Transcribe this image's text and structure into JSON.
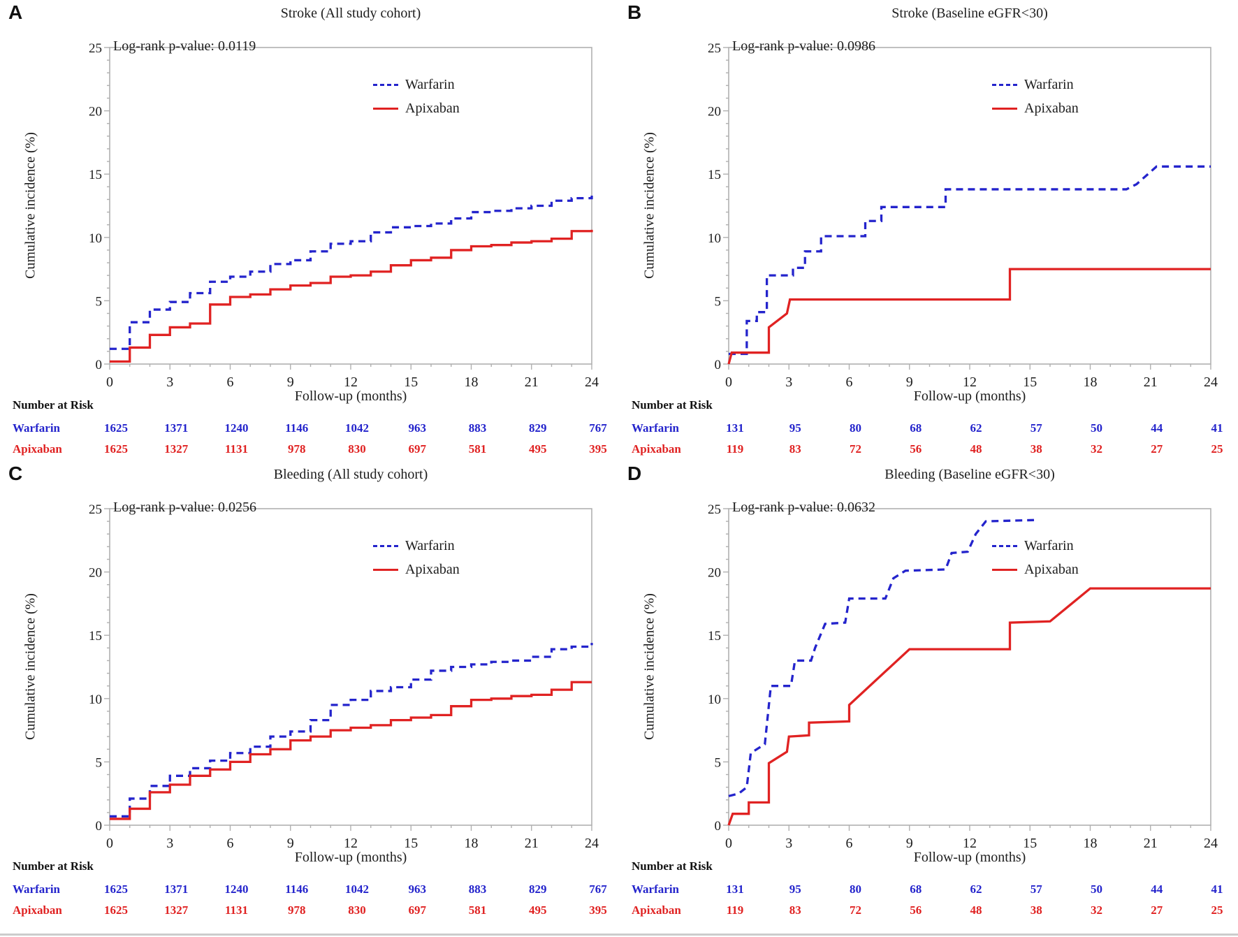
{
  "figure": {
    "background": "#ffffff",
    "axis_color": "#b0b0b0",
    "text_color": "#1d1d1d",
    "ylabel": "Cumulative incidence (%)",
    "xlabel": "Follow-up (months)",
    "risk_header": "Number at Risk",
    "warfarin_color": "#2424cc",
    "apixaban_color": "#e02222"
  },
  "chart_data": [
    {
      "label": "A",
      "title": "Stroke (All study cohort)",
      "type": "line",
      "p_value_label": "Log-rank p-value: 0.0119",
      "xlabel": "Follow-up (months)",
      "ylabel": "Cumulative incidence (%)",
      "xlim": [
        0,
        24
      ],
      "ylim": [
        0,
        25
      ],
      "xticks": [
        0,
        3,
        6,
        9,
        12,
        15,
        18,
        21,
        24
      ],
      "yticks": [
        0,
        5,
        10,
        15,
        20,
        25
      ],
      "grid": false,
      "legend_position": "upper-right-inside",
      "series": [
        {
          "name": "Warfarin",
          "color": "#2424cc",
          "dash": true,
          "step": true,
          "x": [
            0,
            1,
            2,
            3,
            4,
            5,
            6,
            7,
            8,
            9,
            10,
            11,
            12,
            13,
            14,
            15,
            16,
            17,
            18,
            19,
            20,
            21,
            22,
            23,
            24
          ],
          "y": [
            1.2,
            3.3,
            4.3,
            4.9,
            5.6,
            6.5,
            6.9,
            7.3,
            7.9,
            8.2,
            8.9,
            9.5,
            9.7,
            10.4,
            10.8,
            10.9,
            11.1,
            11.5,
            12.0,
            12.1,
            12.3,
            12.5,
            12.9,
            13.1,
            13.3
          ]
        },
        {
          "name": "Apixaban",
          "color": "#e02222",
          "dash": false,
          "step": true,
          "x": [
            0,
            1,
            2,
            3,
            4,
            5,
            6,
            7,
            8,
            9,
            10,
            11,
            12,
            13,
            14,
            15,
            16,
            17,
            18,
            19,
            20,
            21,
            22,
            23,
            24
          ],
          "y": [
            0.2,
            1.3,
            2.3,
            2.9,
            3.2,
            4.7,
            5.3,
            5.5,
            5.9,
            6.2,
            6.4,
            6.9,
            7.0,
            7.3,
            7.8,
            8.2,
            8.4,
            9.0,
            9.3,
            9.4,
            9.6,
            9.7,
            9.9,
            10.5,
            10.6
          ]
        }
      ],
      "risk_table": {
        "months": [
          0,
          3,
          6,
          9,
          12,
          15,
          18,
          21,
          24
        ],
        "rows": [
          {
            "name": "Warfarin",
            "color": "#2424cc",
            "values": [
              1625,
              1371,
              1240,
              1146,
              1042,
              963,
              883,
              829,
              767
            ]
          },
          {
            "name": "Apixaban",
            "color": "#e02222",
            "values": [
              1625,
              1327,
              1131,
              978,
              830,
              697,
              581,
              495,
              395
            ]
          }
        ]
      }
    },
    {
      "label": "B",
      "title": "Stroke (Baseline eGFR<30)",
      "type": "line",
      "p_value_label": "Log-rank p-value: 0.0986",
      "xlabel": "Follow-up (months)",
      "ylabel": "Cumulative incidence (%)",
      "xlim": [
        0,
        24
      ],
      "ylim": [
        0,
        25
      ],
      "xticks": [
        0,
        3,
        6,
        9,
        12,
        15,
        18,
        21,
        24
      ],
      "yticks": [
        0,
        5,
        10,
        15,
        20,
        25
      ],
      "grid": false,
      "legend_position": "upper-right-inside",
      "series": [
        {
          "name": "Warfarin",
          "color": "#2424cc",
          "dash": true,
          "step": false,
          "x": [
            0,
            0.9,
            0.9,
            1.4,
            1.4,
            1.9,
            1.9,
            3.2,
            3.2,
            3.8,
            3.8,
            4.6,
            4.6,
            6.8,
            6.8,
            7.6,
            7.6,
            10.8,
            10.8,
            19.8,
            20.3,
            21.3,
            24
          ],
          "y": [
            0.8,
            0.8,
            3.4,
            3.4,
            4.1,
            4.1,
            7.0,
            7.0,
            7.6,
            7.6,
            8.9,
            8.9,
            10.1,
            10.1,
            11.3,
            11.3,
            12.4,
            12.4,
            13.8,
            13.8,
            14.2,
            15.6,
            15.6
          ]
        },
        {
          "name": "Apixaban",
          "color": "#e02222",
          "dash": false,
          "step": false,
          "x": [
            0,
            0.15,
            2,
            2,
            2.9,
            3.05,
            14,
            14,
            24
          ],
          "y": [
            0,
            0.9,
            0.9,
            2.9,
            4.0,
            5.1,
            5.1,
            7.5,
            7.5
          ]
        }
      ],
      "risk_table": {
        "months": [
          0,
          3,
          6,
          9,
          12,
          15,
          18,
          21,
          24
        ],
        "rows": [
          {
            "name": "Warfarin",
            "color": "#2424cc",
            "values": [
              131,
              95,
              80,
              68,
              62,
              57,
              50,
              44,
              41
            ]
          },
          {
            "name": "Apixaban",
            "color": "#e02222",
            "values": [
              119,
              83,
              72,
              56,
              48,
              38,
              32,
              27,
              25
            ]
          }
        ]
      }
    },
    {
      "label": "C",
      "title": "Bleeding (All study cohort)",
      "type": "line",
      "p_value_label": "Log-rank p-value: 0.0256",
      "xlabel": "Follow-up (months)",
      "ylabel": "Cumulative incidence (%)",
      "xlim": [
        0,
        24
      ],
      "ylim": [
        0,
        25
      ],
      "xticks": [
        0,
        3,
        6,
        9,
        12,
        15,
        18,
        21,
        24
      ],
      "yticks": [
        0,
        5,
        10,
        15,
        20,
        25
      ],
      "grid": false,
      "legend_position": "upper-right-inside",
      "series": [
        {
          "name": "Warfarin",
          "color": "#2424cc",
          "dash": true,
          "step": true,
          "x": [
            0,
            1,
            2,
            3,
            4,
            5,
            6,
            7,
            8,
            9,
            10,
            11,
            12,
            13,
            14,
            15,
            16,
            17,
            18,
            19,
            20,
            21,
            22,
            23,
            24
          ],
          "y": [
            0.7,
            2.1,
            3.1,
            3.9,
            4.5,
            5.1,
            5.7,
            6.2,
            7.0,
            7.4,
            8.3,
            9.5,
            9.9,
            10.6,
            10.9,
            11.5,
            12.2,
            12.5,
            12.7,
            12.9,
            13.0,
            13.3,
            13.9,
            14.1,
            14.4
          ]
        },
        {
          "name": "Apixaban",
          "color": "#e02222",
          "dash": false,
          "step": true,
          "x": [
            0,
            1,
            2,
            3,
            4,
            5,
            6,
            7,
            8,
            9,
            10,
            11,
            12,
            13,
            14,
            15,
            16,
            17,
            18,
            19,
            20,
            21,
            22,
            23,
            24
          ],
          "y": [
            0.5,
            1.3,
            2.6,
            3.2,
            3.9,
            4.4,
            5.0,
            5.6,
            6.0,
            6.7,
            7.0,
            7.5,
            7.7,
            7.9,
            8.3,
            8.5,
            8.7,
            9.4,
            9.9,
            10.0,
            10.2,
            10.3,
            10.7,
            11.3,
            11.3
          ]
        }
      ],
      "risk_table": {
        "months": [
          0,
          3,
          6,
          9,
          12,
          15,
          18,
          21,
          24
        ],
        "rows": [
          {
            "name": "Warfarin",
            "color": "#2424cc",
            "values": [
              1625,
              1371,
              1240,
              1146,
              1042,
              963,
              883,
              829,
              767
            ]
          },
          {
            "name": "Apixaban",
            "color": "#e02222",
            "values": [
              1625,
              1327,
              1131,
              978,
              830,
              697,
              581,
              495,
              395
            ]
          }
        ]
      }
    },
    {
      "label": "D",
      "title": "Bleeding (Baseline eGFR<30)",
      "type": "line",
      "p_value_label": "Log-rank p-value: 0.0632",
      "xlabel": "Follow-up (months)",
      "ylabel": "Cumulative incidence (%)",
      "xlim": [
        0,
        24
      ],
      "ylim": [
        0,
        25
      ],
      "xticks": [
        0,
        3,
        6,
        9,
        12,
        15,
        18,
        21,
        24
      ],
      "yticks": [
        0,
        5,
        10,
        15,
        20,
        25
      ],
      "grid": false,
      "legend_position": "upper-right-inside",
      "series": [
        {
          "name": "Warfarin",
          "color": "#2424cc",
          "dash": true,
          "step": false,
          "x": [
            0,
            0.5,
            0.9,
            1.1,
            1.8,
            2.1,
            3.1,
            3.3,
            4.1,
            4.3,
            4.8,
            5.8,
            6.0,
            7.8,
            8.2,
            8.8,
            10.8,
            11.1,
            11.9,
            12.3,
            12.8,
            15.2
          ],
          "y": [
            2.3,
            2.5,
            3.0,
            5.7,
            6.4,
            11.0,
            11.0,
            13.0,
            13.0,
            14.0,
            15.9,
            16.0,
            17.9,
            17.9,
            19.5,
            20.1,
            20.2,
            21.5,
            21.6,
            23.0,
            24.0,
            24.1
          ]
        },
        {
          "name": "Apixaban",
          "color": "#e02222",
          "dash": false,
          "step": false,
          "x": [
            0,
            0.2,
            1,
            1,
            2,
            2,
            2.9,
            3,
            4,
            4,
            6,
            6,
            9,
            14,
            14,
            16,
            18,
            24
          ],
          "y": [
            0,
            0.9,
            0.9,
            1.8,
            1.8,
            4.9,
            5.8,
            7.0,
            7.1,
            8.1,
            8.2,
            9.5,
            13.9,
            13.9,
            16.0,
            16.1,
            18.7,
            18.7
          ]
        }
      ],
      "risk_table": {
        "months": [
          0,
          3,
          6,
          9,
          12,
          15,
          18,
          21,
          24
        ],
        "rows": [
          {
            "name": "Warfarin",
            "color": "#2424cc",
            "values": [
              131,
              95,
              80,
              68,
              62,
              57,
              50,
              44,
              41
            ]
          },
          {
            "name": "Apixaban",
            "color": "#e02222",
            "values": [
              119,
              83,
              72,
              56,
              48,
              38,
              32,
              27,
              25
            ]
          }
        ]
      }
    }
  ]
}
